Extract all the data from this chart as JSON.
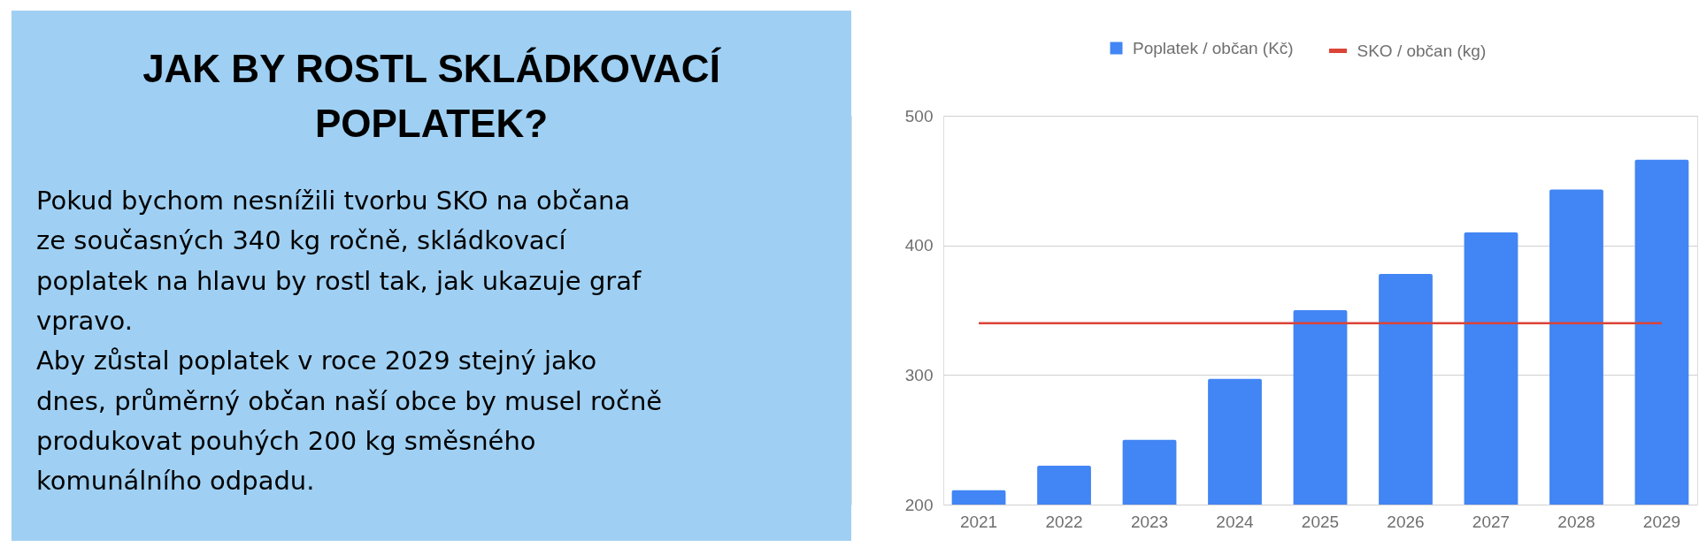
{
  "chart_data": [
    {
      "type": "other",
      "title": "JAK BY ROSTL SKLÁDKOVACÍ POPLATEK?",
      "annotations": [
        "Pokud bychom nesnížili tvorbu SKO na občana",
        "ze současných 340 kg ročně, skládkovací",
        "poplatek na hlavu by rostl tak, jak ukazuje graf",
        "vpravo.",
        "Aby zůstal poplatek v roce 2029 stejný jako",
        "dnes, průměrný občan naší obce by musel ročně",
        "produkovat pouhých 200 kg směsného",
        "komunálního odpadu."
      ]
    },
    {
      "type": "bar",
      "categories": [
        "2021",
        "2022",
        "2023",
        "2024",
        "2025",
        "2026",
        "2027",
        "2028",
        "2029"
      ],
      "series": [
        {
          "name": "Poplatek / občan (Kč)",
          "type": "bar",
          "color": "#4285f4",
          "values": [
            211,
            230,
            250,
            297,
            350,
            378,
            410,
            443,
            466
          ]
        },
        {
          "name": "SKO / občan (kg)",
          "type": "line",
          "color": "#db4437",
          "values": [
            340,
            340,
            340,
            340,
            340,
            340,
            340,
            340,
            340
          ]
        }
      ],
      "ylim": [
        200,
        500
      ],
      "yticks": [
        200,
        300,
        400,
        500
      ],
      "grid": "y",
      "legend": "top"
    }
  ]
}
